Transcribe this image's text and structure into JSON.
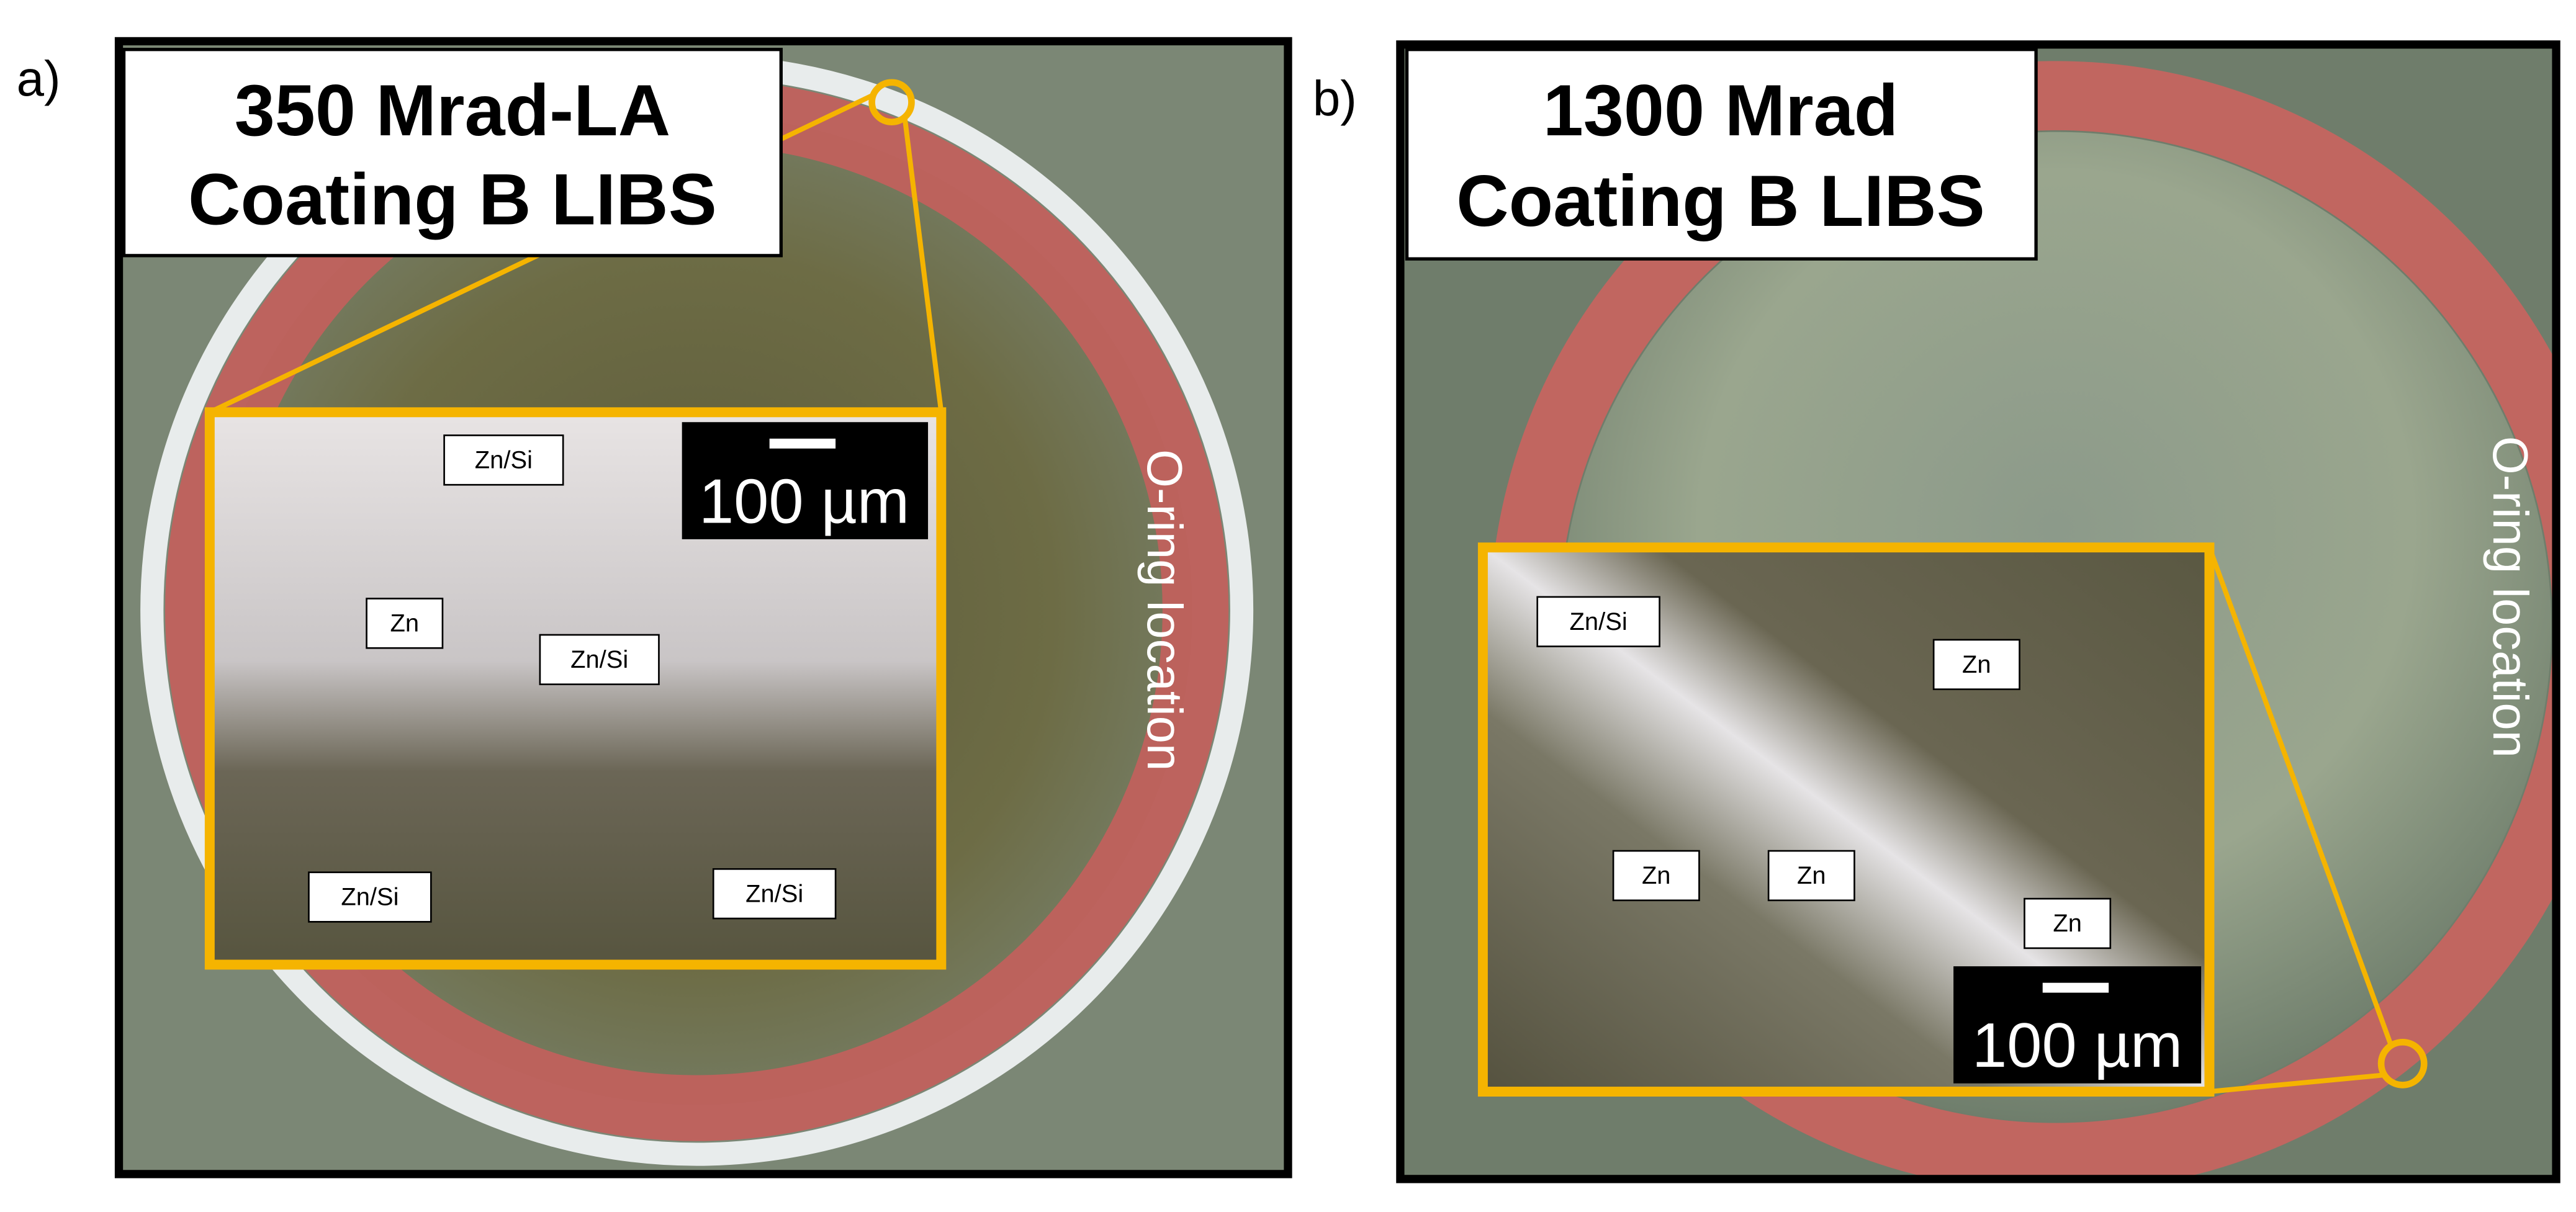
{
  "panels": [
    {
      "label": "a)",
      "title": [
        "350 Mrad-LA",
        "Coating B LIBS"
      ],
      "ring_label": "O-ring location",
      "scale_bar": "100 µm",
      "tags": [
        "Zn/Si",
        "Zn",
        "Zn/Si",
        "Zn/Si",
        "Zn/Si"
      ]
    },
    {
      "label": "b)",
      "title": [
        "1300 Mrad",
        "Coating B LIBS"
      ],
      "ring_label": "O-ring location",
      "scale_bar": "100 µm",
      "tags": [
        "Zn/Si",
        "Zn",
        "Zn",
        "Zn",
        "Zn"
      ]
    }
  ]
}
